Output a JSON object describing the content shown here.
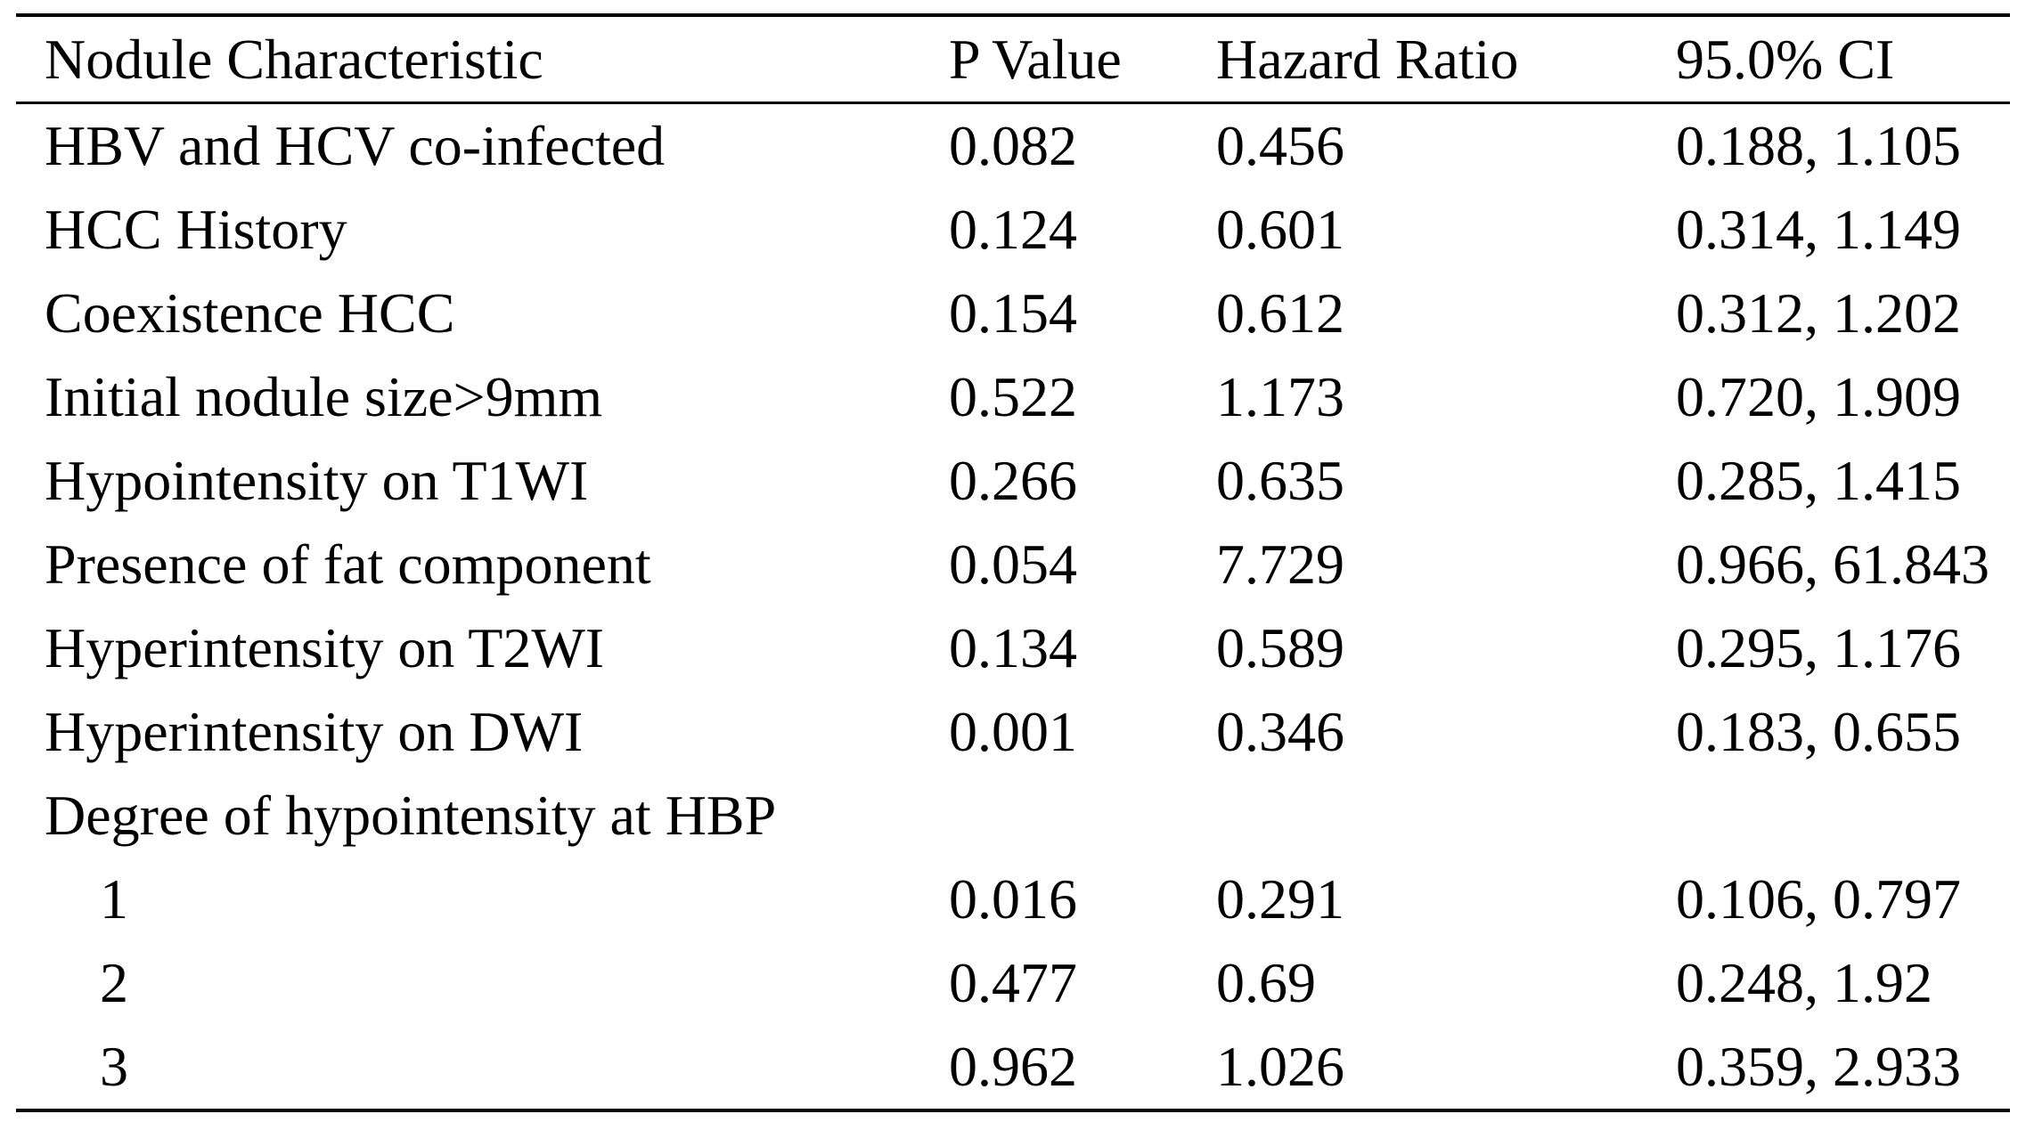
{
  "table": {
    "columns": [
      "Nodule Characteristic",
      "P Value",
      "Hazard Ratio",
      "95.0% CI"
    ],
    "rows": [
      {
        "label": "HBV and HCV co-infected",
        "p_value": "0.082",
        "hazard_ratio": "0.456",
        "ci": "0.188, 1.105",
        "indent": false
      },
      {
        "label": "HCC History",
        "p_value": "0.124",
        "hazard_ratio": "0.601",
        "ci": "0.314, 1.149",
        "indent": false
      },
      {
        "label": "Coexistence HCC",
        "p_value": "0.154",
        "hazard_ratio": "0.612",
        "ci": "0.312, 1.202",
        "indent": false
      },
      {
        "label": "Initial nodule size>9mm",
        "p_value": "0.522",
        "hazard_ratio": "1.173",
        "ci": "0.720, 1.909",
        "indent": false
      },
      {
        "label": "Hypointensity on T1WI",
        "p_value": "0.266",
        "hazard_ratio": "0.635",
        "ci": "0.285, 1.415",
        "indent": false
      },
      {
        "label": "Presence of fat component",
        "p_value": "0.054",
        "hazard_ratio": "7.729",
        "ci": "0.966, 61.843",
        "indent": false
      },
      {
        "label": "Hyperintensity on T2WI",
        "p_value": "0.134",
        "hazard_ratio": "0.589",
        "ci": "0.295, 1.176",
        "indent": false
      },
      {
        "label": "Hyperintensity on DWI",
        "p_value": "0.001",
        "hazard_ratio": "0.346",
        "ci": "0.183, 0.655",
        "indent": false
      },
      {
        "label": "Degree of hypointensity at HBP",
        "p_value": "",
        "hazard_ratio": "",
        "ci": "",
        "indent": false
      },
      {
        "label": "1",
        "p_value": "0.016",
        "hazard_ratio": "0.291",
        "ci": "0.106, 0.797",
        "indent": true
      },
      {
        "label": "2",
        "p_value": "0.477",
        "hazard_ratio": "0.69",
        "ci": "0.248, 1.92",
        "indent": true
      },
      {
        "label": "3",
        "p_value": "0.962",
        "hazard_ratio": "1.026",
        "ci": "0.359, 2.933",
        "indent": true
      }
    ]
  }
}
